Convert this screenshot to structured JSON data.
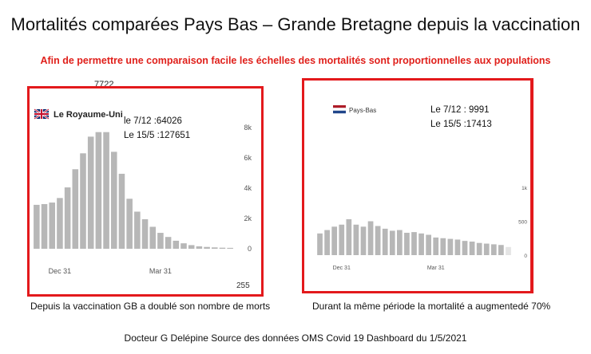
{
  "title": "Mortalités comparées Pays Bas – Grande Bretagne depuis la vaccination",
  "subtitle": "Afin de permettre une comparaison facile les échelles des mortalités sont proportionnelles aux populations",
  "footer": "Docteur G Delépine Source des données OMS  Covid 19 Dashboard du 1/5/2021",
  "colors": {
    "accent_red": "#e3191c",
    "subtitle_red": "#e0201b",
    "bar_gray": "#b7b7b7",
    "bar_light": "#e4e4e4"
  },
  "chart_data": [
    {
      "type": "bar",
      "country": "Le Royaume-Uni",
      "flag": "uk-flag",
      "annotations": [
        "le 7/12 :64026",
        "Le 15/5 :127651"
      ],
      "stray_top_label": "7722",
      "stray_bottom_label": "255",
      "caption": "Depuis la vaccination GB a doublé son nombre de morts",
      "y_ticks": [
        "8k",
        "6k",
        "4k",
        "2k",
        "0"
      ],
      "ylim": [
        0,
        8000
      ],
      "x_ticks": [
        {
          "label": "Dec 31",
          "index": 3
        },
        {
          "label": "Mar 31",
          "index": 16
        }
      ],
      "values": [
        2900,
        2950,
        3050,
        3350,
        4050,
        5250,
        6300,
        7400,
        7700,
        7700,
        6400,
        4950,
        3300,
        2450,
        1950,
        1450,
        1050,
        780,
        530,
        360,
        240,
        160,
        120,
        90,
        70,
        60
      ]
    },
    {
      "type": "bar",
      "country": "Pays-Bas",
      "flag": "netherlands-flag",
      "annotations": [
        "Le 7/12 : 9991",
        "Le 15/5 :17413"
      ],
      "caption": "Durant la même période la mortalité a augmentedé 70%",
      "y_ticks": [
        "1k",
        "500",
        "0"
      ],
      "ylim": [
        0,
        1000
      ],
      "x_ticks": [
        {
          "label": "Dec 31",
          "index": 3
        },
        {
          "label": "Mar 31",
          "index": 16
        }
      ],
      "values": [
        320,
        370,
        420,
        450,
        530,
        450,
        420,
        500,
        430,
        390,
        360,
        370,
        330,
        340,
        320,
        300,
        260,
        250,
        240,
        230,
        210,
        200,
        180,
        170,
        160,
        150,
        120
      ]
    }
  ]
}
